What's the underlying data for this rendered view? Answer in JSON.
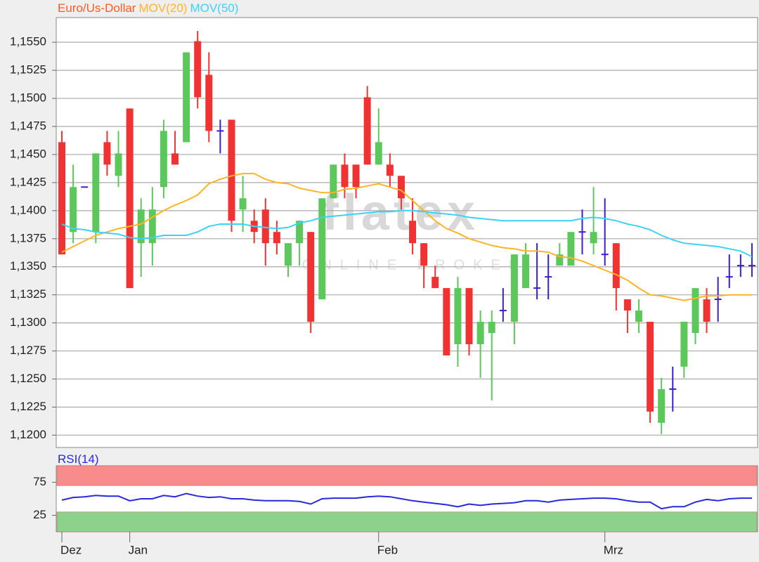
{
  "chart_data": [
    {
      "type": "candlestick",
      "name": "Euro/Us-Dollar",
      "color": "#ff5a1e",
      "up_color": "#5cc85c",
      "down_color": "#f03232",
      "doji_color": "#3c1ecc",
      "categories": [
        "Dez",
        null,
        null,
        null,
        null,
        null,
        "Jan",
        null,
        null,
        null,
        null,
        null,
        null,
        null,
        null,
        null,
        null,
        null,
        null,
        null,
        null,
        null,
        null,
        null,
        null,
        null,
        null,
        null,
        "Feb",
        null,
        null,
        null,
        null,
        null,
        null,
        null,
        null,
        null,
        null,
        null,
        null,
        null,
        null,
        null,
        null,
        null,
        null,
        null,
        "Mrz",
        null,
        null,
        null,
        null,
        null,
        null,
        null,
        null,
        null,
        null,
        null,
        null,
        null
      ],
      "open": [
        1.1461,
        1.1381,
        1.1421,
        1.1381,
        1.1461,
        1.1431,
        1.1491,
        1.1371,
        1.1371,
        1.1421,
        1.1451,
        1.1461,
        1.1551,
        1.1521,
        1.1471,
        1.1481,
        1.1401,
        1.1391,
        1.1401,
        1.1381,
        1.1351,
        1.1371,
        1.1381,
        1.1321,
        1.1411,
        1.1441,
        1.1441,
        1.1501,
        1.1441,
        1.1441,
        1.1431,
        1.1391,
        1.1371,
        1.1341,
        1.1331,
        1.1281,
        1.1331,
        1.1281,
        1.1291,
        1.1311,
        1.1301,
        1.1331,
        1.1331,
        1.1341,
        1.1351,
        1.1351,
        1.1381,
        1.1371,
        1.1361,
        1.1371,
        1.1321,
        1.1301,
        1.1301,
        1.1211,
        1.1241,
        1.1261,
        1.1291,
        1.1321,
        1.1321,
        1.1341,
        1.1351,
        1.1351
      ],
      "high": [
        1.1471,
        1.1441,
        1.1421,
        1.1451,
        1.1471,
        1.1471,
        1.1491,
        1.1411,
        1.1421,
        1.1481,
        1.1471,
        1.1541,
        1.156,
        1.1541,
        1.1481,
        1.1481,
        1.1431,
        1.1401,
        1.1411,
        1.1391,
        1.1371,
        1.1391,
        1.1381,
        1.1411,
        1.1441,
        1.1451,
        1.1441,
        1.1511,
        1.1491,
        1.1451,
        1.1431,
        1.1411,
        1.1371,
        1.1351,
        1.1331,
        1.1341,
        1.1331,
        1.1311,
        1.1311,
        1.1331,
        1.1361,
        1.1371,
        1.1371,
        1.1361,
        1.1371,
        1.1381,
        1.1401,
        1.1421,
        1.1411,
        1.1371,
        1.1321,
        1.1321,
        1.1301,
        1.1251,
        1.1261,
        1.1301,
        1.1331,
        1.1331,
        1.1341,
        1.1361,
        1.1361,
        1.1371
      ],
      "low": [
        1.1361,
        1.1371,
        1.1421,
        1.1371,
        1.1431,
        1.1421,
        1.1331,
        1.1341,
        1.1351,
        1.1411,
        1.1441,
        1.1461,
        1.1491,
        1.1461,
        1.1451,
        1.1381,
        1.1381,
        1.1371,
        1.1351,
        1.1361,
        1.1341,
        1.1351,
        1.1291,
        1.1321,
        1.1411,
        1.1411,
        1.1411,
        1.1441,
        1.1441,
        1.1421,
        1.1401,
        1.1361,
        1.1331,
        1.1331,
        1.1271,
        1.1261,
        1.1271,
        1.1251,
        1.1231,
        1.1301,
        1.1281,
        1.1331,
        1.1321,
        1.1321,
        1.1351,
        1.1351,
        1.1361,
        1.1361,
        1.1351,
        1.1311,
        1.1291,
        1.1291,
        1.1211,
        1.1201,
        1.1221,
        1.1251,
        1.1281,
        1.1291,
        1.1301,
        1.1331,
        1.1341,
        1.1341
      ],
      "close": [
        1.1361,
        1.1421,
        1.1421,
        1.1451,
        1.1441,
        1.1451,
        1.1331,
        1.1401,
        1.1401,
        1.1471,
        1.1441,
        1.1541,
        1.1501,
        1.1471,
        1.1471,
        1.1391,
        1.1411,
        1.1381,
        1.1371,
        1.1371,
        1.1371,
        1.1391,
        1.1301,
        1.1411,
        1.1441,
        1.1421,
        1.1421,
        1.1441,
        1.1461,
        1.1431,
        1.1411,
        1.1371,
        1.1351,
        1.1331,
        1.1271,
        1.1331,
        1.1281,
        1.1301,
        1.1301,
        1.1311,
        1.1361,
        1.1361,
        1.1331,
        1.1341,
        1.1361,
        1.1381,
        1.1381,
        1.1381,
        1.1361,
        1.1331,
        1.1311,
        1.1311,
        1.1221,
        1.1241,
        1.1241,
        1.1301,
        1.1331,
        1.1301,
        1.1321,
        1.1341,
        1.1351,
        1.1351
      ],
      "series": [
        {
          "name": "MOV(20)",
          "color": "#ffb428",
          "values": [
            1.1363,
            1.1368,
            1.1373,
            1.1378,
            1.1381,
            1.1384,
            1.1386,
            1.1388,
            1.1394,
            1.14,
            1.1405,
            1.1409,
            1.1414,
            1.1424,
            1.1428,
            1.1431,
            1.1433,
            1.1433,
            1.1428,
            1.1425,
            1.1424,
            1.142,
            1.1418,
            1.1416,
            1.1416,
            1.1419,
            1.142,
            1.1422,
            1.1424,
            1.1421,
            1.1418,
            1.1409,
            1.14,
            1.1391,
            1.1384,
            1.138,
            1.1375,
            1.1372,
            1.1369,
            1.1367,
            1.1366,
            1.1364,
            1.1364,
            1.1363,
            1.1359,
            1.1358,
            1.1355,
            1.1351,
            1.1347,
            1.1343,
            1.1338,
            1.1331,
            1.1325,
            1.1324,
            1.1322,
            1.132,
            1.1322,
            1.1324,
            1.1324,
            1.1325,
            1.1325,
            1.1325
          ]
        },
        {
          "name": "MOV(50)",
          "color": "#3cd2f5",
          "values": [
            1.1388,
            1.1384,
            1.1383,
            1.1381,
            1.138,
            1.1379,
            1.1376,
            1.1375,
            1.1376,
            1.1378,
            1.1378,
            1.1378,
            1.1381,
            1.1386,
            1.1388,
            1.1388,
            1.1388,
            1.1386,
            1.1385,
            1.1384,
            1.1385,
            1.1389,
            1.1391,
            1.1394,
            1.1395,
            1.1396,
            1.1397,
            1.1398,
            1.1399,
            1.1399,
            1.14,
            1.14,
            1.1399,
            1.1398,
            1.1397,
            1.1396,
            1.1394,
            1.1393,
            1.1392,
            1.1391,
            1.1391,
            1.1391,
            1.1391,
            1.1391,
            1.1391,
            1.1391,
            1.1393,
            1.1394,
            1.1393,
            1.1391,
            1.1388,
            1.1386,
            1.1383,
            1.1378,
            1.1374,
            1.1371,
            1.137,
            1.1369,
            1.1368,
            1.1366,
            1.1364,
            1.1359
          ]
        }
      ],
      "ylim": [
        1.1189,
        1.1572
      ],
      "yticks": [
        {
          "value": 1.12,
          "label": "1,1200"
        },
        {
          "value": 1.1225,
          "label": "1,1225"
        },
        {
          "value": 1.125,
          "label": "1,1250"
        },
        {
          "value": 1.1275,
          "label": "1,1275"
        },
        {
          "value": 1.13,
          "label": "1,1300"
        },
        {
          "value": 1.1325,
          "label": "1,1325"
        },
        {
          "value": 1.135,
          "label": "1,1350"
        },
        {
          "value": 1.1375,
          "label": "1,1375"
        },
        {
          "value": 1.14,
          "label": "1,1400"
        },
        {
          "value": 1.1425,
          "label": "1,1425"
        },
        {
          "value": 1.145,
          "label": "1,1450"
        },
        {
          "value": 1.1475,
          "label": "1,1475"
        },
        {
          "value": 1.15,
          "label": "1,1500"
        },
        {
          "value": 1.1525,
          "label": "1,1525"
        },
        {
          "value": 1.155,
          "label": "1,1550"
        }
      ],
      "grid": true,
      "watermark": {
        "logo": "flatex",
        "tagline": "ONLINE BROKER"
      }
    },
    {
      "type": "line",
      "series": [
        {
          "name": "RSI(14)",
          "color": "#2828dc",
          "values": [
            48,
            52,
            53,
            55,
            54,
            54,
            47,
            50,
            50,
            55,
            53,
            58,
            54,
            52,
            53,
            50,
            50,
            48,
            47,
            47,
            47,
            46,
            42,
            50,
            51,
            51,
            51,
            53,
            54,
            53,
            50,
            47,
            45,
            43,
            41,
            38,
            42,
            40,
            42,
            43,
            44,
            47,
            47,
            45,
            48,
            49,
            50,
            51,
            51,
            50,
            47,
            45,
            45,
            35,
            38,
            38,
            45,
            49,
            47,
            50,
            51,
            51
          ]
        }
      ],
      "ylim": [
        0,
        100
      ],
      "yticks": [
        25,
        75
      ],
      "zones": [
        {
          "from": 70,
          "to": 100,
          "color": "#f88c8c"
        },
        {
          "from": 0,
          "to": 30,
          "color": "#8cd28c"
        }
      ]
    }
  ]
}
